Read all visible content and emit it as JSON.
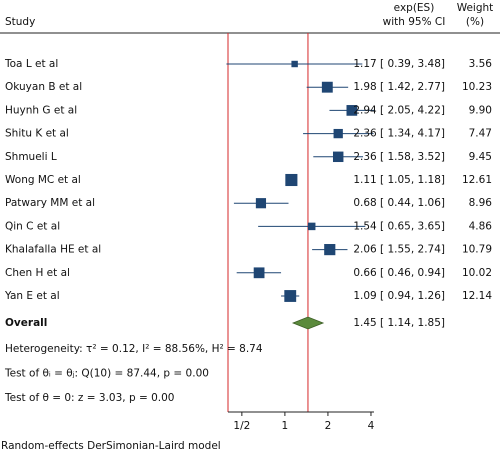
{
  "chart_data": {
    "type": "forest",
    "header": {
      "study": "Study",
      "effect": "exp(ES)",
      "effect_sub": "with 95% CI",
      "weight": "Weight",
      "weight_sub": "(%)"
    },
    "categories": [
      "Toa L et al",
      "Okuyan B et al",
      "Huynh G et al",
      "Shitu K et al",
      "Shmueli L",
      "Wong MC et al",
      "Patwary MM et al",
      "Qin C et al",
      "Khalafalla HE et al",
      "Chen H et al",
      "Yan E et al"
    ],
    "values": [
      1.17,
      1.98,
      2.94,
      2.36,
      2.36,
      1.11,
      0.68,
      1.54,
      2.06,
      0.66,
      1.09
    ],
    "lower": [
      0.39,
      1.42,
      2.05,
      1.34,
      1.58,
      1.05,
      0.44,
      0.65,
      1.55,
      0.46,
      0.94
    ],
    "upper": [
      3.48,
      2.77,
      4.22,
      4.17,
      3.52,
      1.18,
      1.06,
      3.65,
      2.74,
      0.94,
      1.26
    ],
    "value_labels": [
      "1.17 [ 0.39, 3.48]",
      "1.98 [ 1.42, 2.77]",
      "2.94 [ 2.05, 4.22]",
      "2.36 [ 1.34, 4.17]",
      "2.36 [ 1.58, 3.52]",
      "1.11 [ 1.05, 1.18]",
      "0.68 [ 0.44, 1.06]",
      "1.54 [ 0.65, 3.65]",
      "2.06 [ 1.55, 2.74]",
      "0.66 [ 0.46, 0.94]",
      "1.09 [ 0.94, 1.26]"
    ],
    "weights": [
      3.56,
      10.23,
      9.9,
      7.47,
      9.45,
      12.61,
      8.96,
      4.86,
      10.79,
      10.02,
      12.14
    ],
    "weight_labels": [
      "3.56",
      "10.23",
      "9.90",
      "7.47",
      "9.45",
      "12.61",
      "8.96",
      "4.86",
      "10.79",
      "10.02",
      "12.14"
    ],
    "overall": {
      "label": "Overall",
      "value": 1.45,
      "lower": 1.14,
      "upper": 1.85,
      "value_label": "1.45 [ 1.14, 1.85]"
    },
    "notes": [
      "Heterogeneity: τ² = 0.12, I² = 88.56%, H² = 8.74",
      "Test of θᵢ = θⱼ: Q(10) = 87.44, p = 0.00",
      "Test of θ = 0: z = 3.03, p = 0.00"
    ],
    "footnote": "Random-effects DerSimonian-Laird model",
    "log_x": true,
    "xlim": [
      0.4,
      4.2
    ],
    "xticks": [
      {
        "value": 0.5,
        "label": "1/2"
      },
      1,
      2,
      4
    ],
    "color": "#1f4673",
    "overall_color": "#5b8a3c",
    "line_color": "#d62728"
  }
}
